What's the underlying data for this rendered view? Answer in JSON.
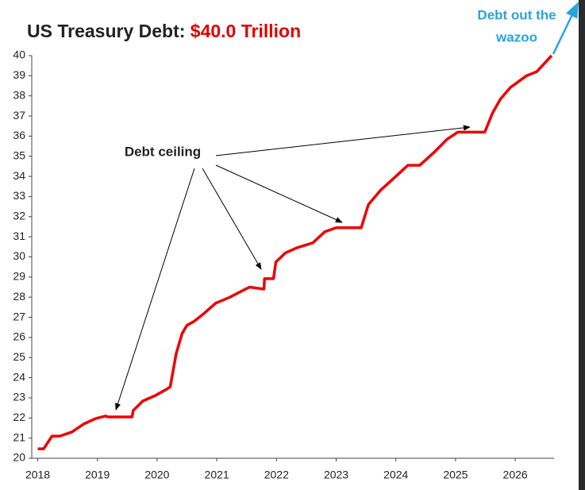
{
  "chart_data": {
    "type": "line",
    "title": "US Treasury Debt:",
    "title_value": "$40.0 Trillion",
    "annotations": [
      "Debt ceiling",
      "Debt out the",
      "wazoo"
    ],
    "xlim": [
      2017.9,
      2026.65
    ],
    "ylim": [
      20,
      40
    ],
    "xticks": [
      2018,
      2019,
      2020,
      2021,
      2022,
      2023,
      2024,
      2025,
      2026
    ],
    "yticks": [
      20,
      21,
      22,
      23,
      24,
      25,
      26,
      27,
      28,
      29,
      30,
      31,
      32,
      33,
      34,
      35,
      36,
      37,
      38,
      39,
      40
    ],
    "grid": false,
    "series": [
      {
        "name": "US Treasury Debt",
        "color": "#ee0000",
        "x": [
          2018.0,
          2018.1,
          2018.24,
          2018.37,
          2018.57,
          2018.77,
          2018.97,
          2019.14,
          2019.17,
          2019.58,
          2019.6,
          2019.76,
          2019.96,
          2020.16,
          2020.22,
          2020.32,
          2020.42,
          2020.5,
          2020.62,
          2020.79,
          2020.98,
          2021.22,
          2021.48,
          2021.55,
          2021.79,
          2021.8,
          2021.95,
          2021.99,
          2022.15,
          2022.34,
          2022.61,
          2022.81,
          2023.0,
          2023.42,
          2023.54,
          2023.74,
          2024.0,
          2024.2,
          2024.4,
          2024.66,
          2024.86,
          2025.04,
          2025.49,
          2025.62,
          2025.75,
          2025.92,
          2026.19,
          2026.36,
          2026.61
        ],
        "values": [
          20.47,
          20.47,
          21.1,
          21.1,
          21.3,
          21.7,
          21.97,
          22.1,
          22.05,
          22.05,
          22.37,
          22.84,
          23.1,
          23.43,
          23.55,
          25.2,
          26.2,
          26.6,
          26.8,
          27.2,
          27.7,
          28.0,
          28.4,
          28.5,
          28.4,
          28.92,
          28.92,
          29.75,
          30.2,
          30.45,
          30.7,
          31.25,
          31.45,
          31.45,
          32.6,
          33.3,
          34.0,
          34.55,
          34.55,
          35.25,
          35.85,
          36.2,
          36.2,
          37.15,
          37.83,
          38.42,
          39.0,
          39.2,
          40.0
        ]
      }
    ]
  }
}
